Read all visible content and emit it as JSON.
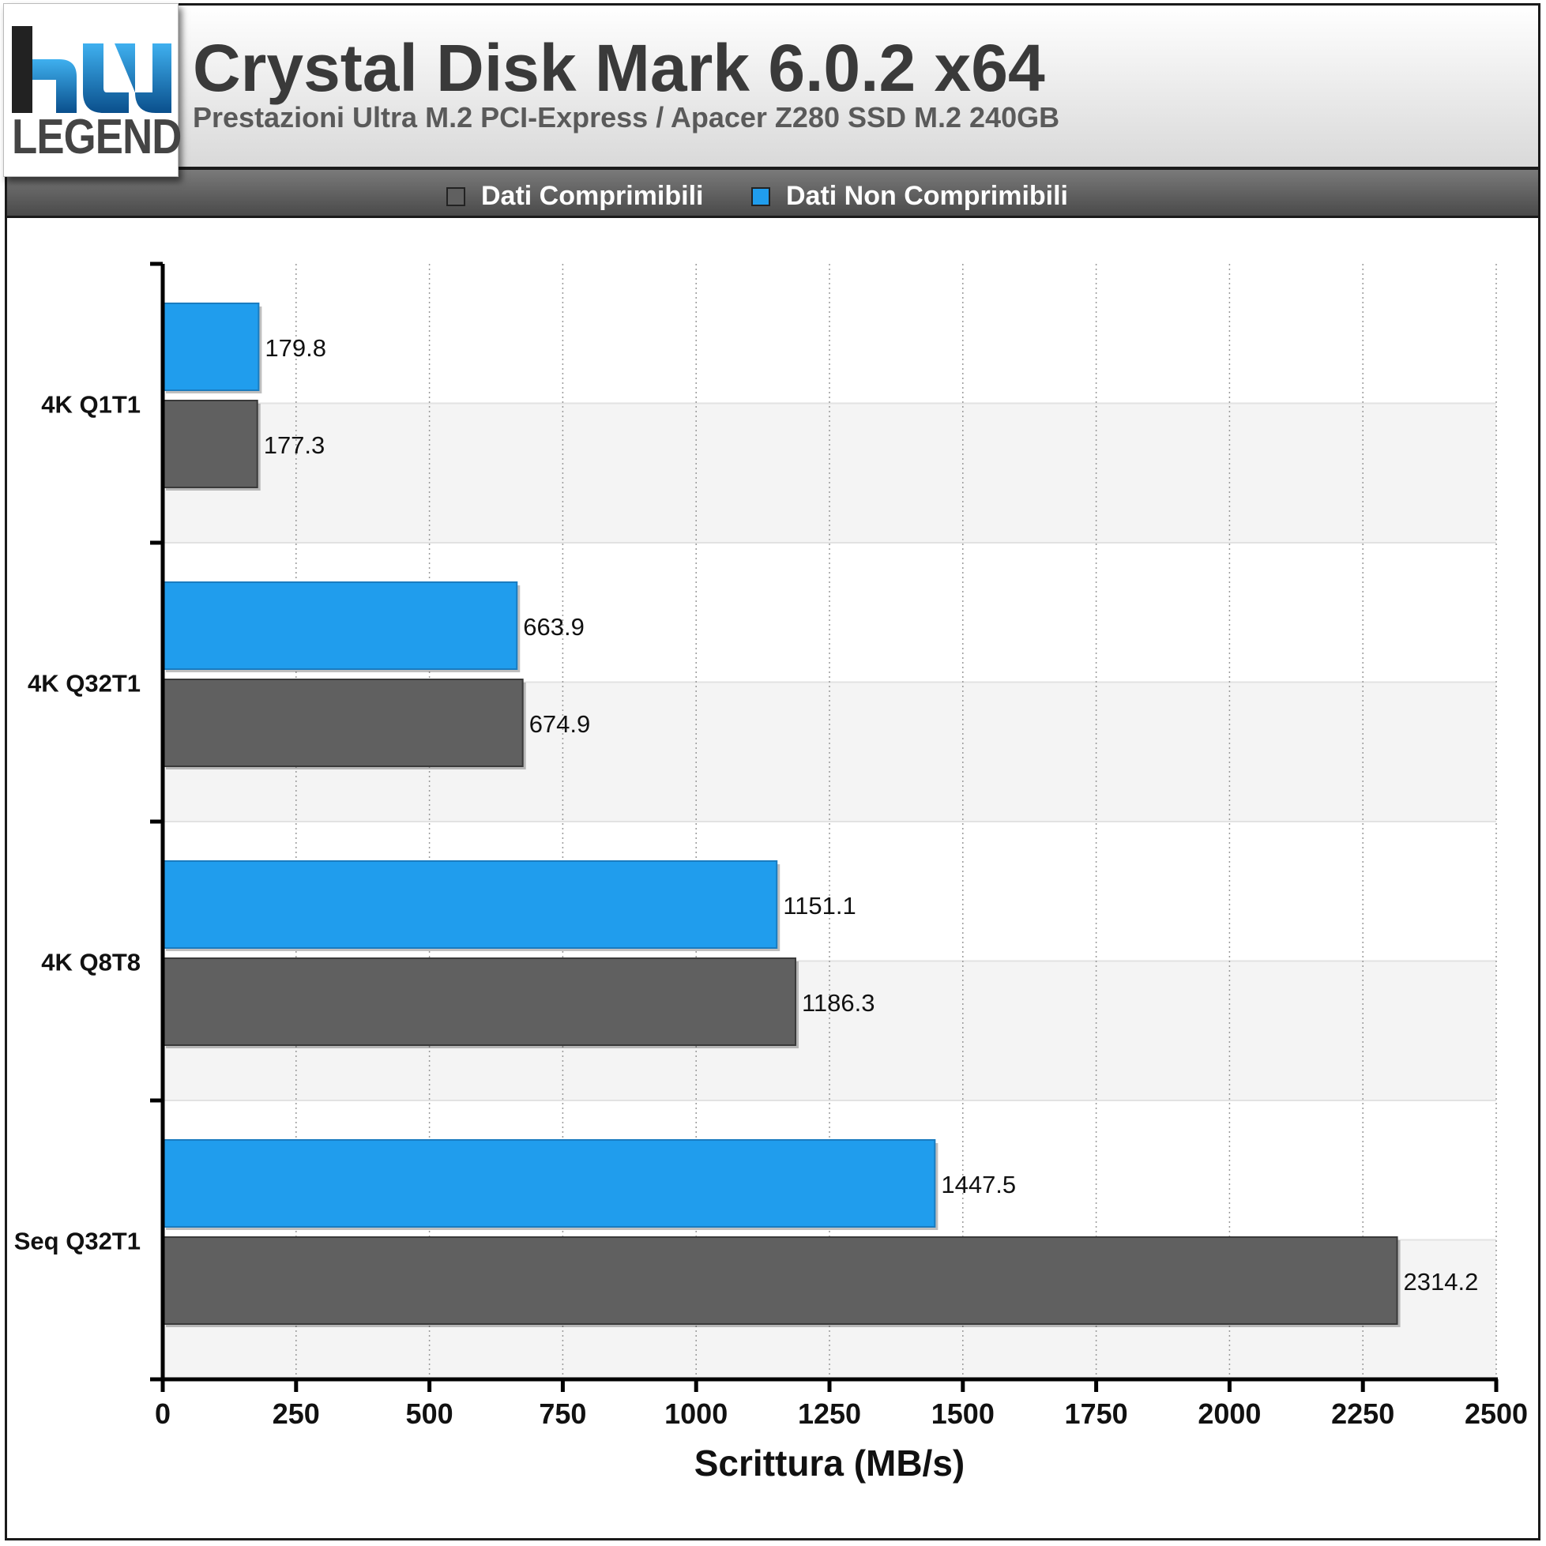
{
  "header": {
    "logo_text": "LEGEND",
    "title": "Crystal Disk Mark 6.0.2 x64",
    "subtitle": "Prestazioni Ultra M.2 PCI-Express / Apacer Z280 SSD M.2 240GB"
  },
  "legend": [
    {
      "label": "Dati Comprimibili",
      "color": "#606060"
    },
    {
      "label": "Dati Non Comprimibili",
      "color": "#209ded"
    }
  ],
  "chart_data": {
    "type": "bar",
    "orientation": "horizontal",
    "title": "Crystal Disk Mark 6.0.2 x64",
    "subtitle": "Prestazioni Ultra M.2 PCI-Express / Apacer Z280 SSD M.2 240GB",
    "xlabel": "Scrittura (MB/s)",
    "ylabel": "",
    "xlim": [
      0,
      2500
    ],
    "xticks": [
      0,
      250,
      500,
      750,
      1000,
      1250,
      1500,
      1750,
      2000,
      2250,
      2500
    ],
    "grid": "vertical-dotted",
    "legend_position": "top",
    "categories": [
      "4K Q1T1",
      "4K Q32T1",
      "4K Q8T8",
      "Seq Q32T1"
    ],
    "series": [
      {
        "name": "Dati Non Comprimibili",
        "color": "#209ded",
        "values": [
          179.8,
          663.9,
          1151.1,
          1447.5
        ],
        "labels": [
          "179.8",
          "663.9",
          "1151.1",
          "1447.5"
        ]
      },
      {
        "name": "Dati Comprimibili",
        "color": "#606060",
        "values": [
          177.3,
          674.9,
          1186.3,
          2314.2
        ],
        "labels": [
          "177.3",
          "674.9",
          "1186.3",
          "2314.2"
        ]
      }
    ]
  }
}
